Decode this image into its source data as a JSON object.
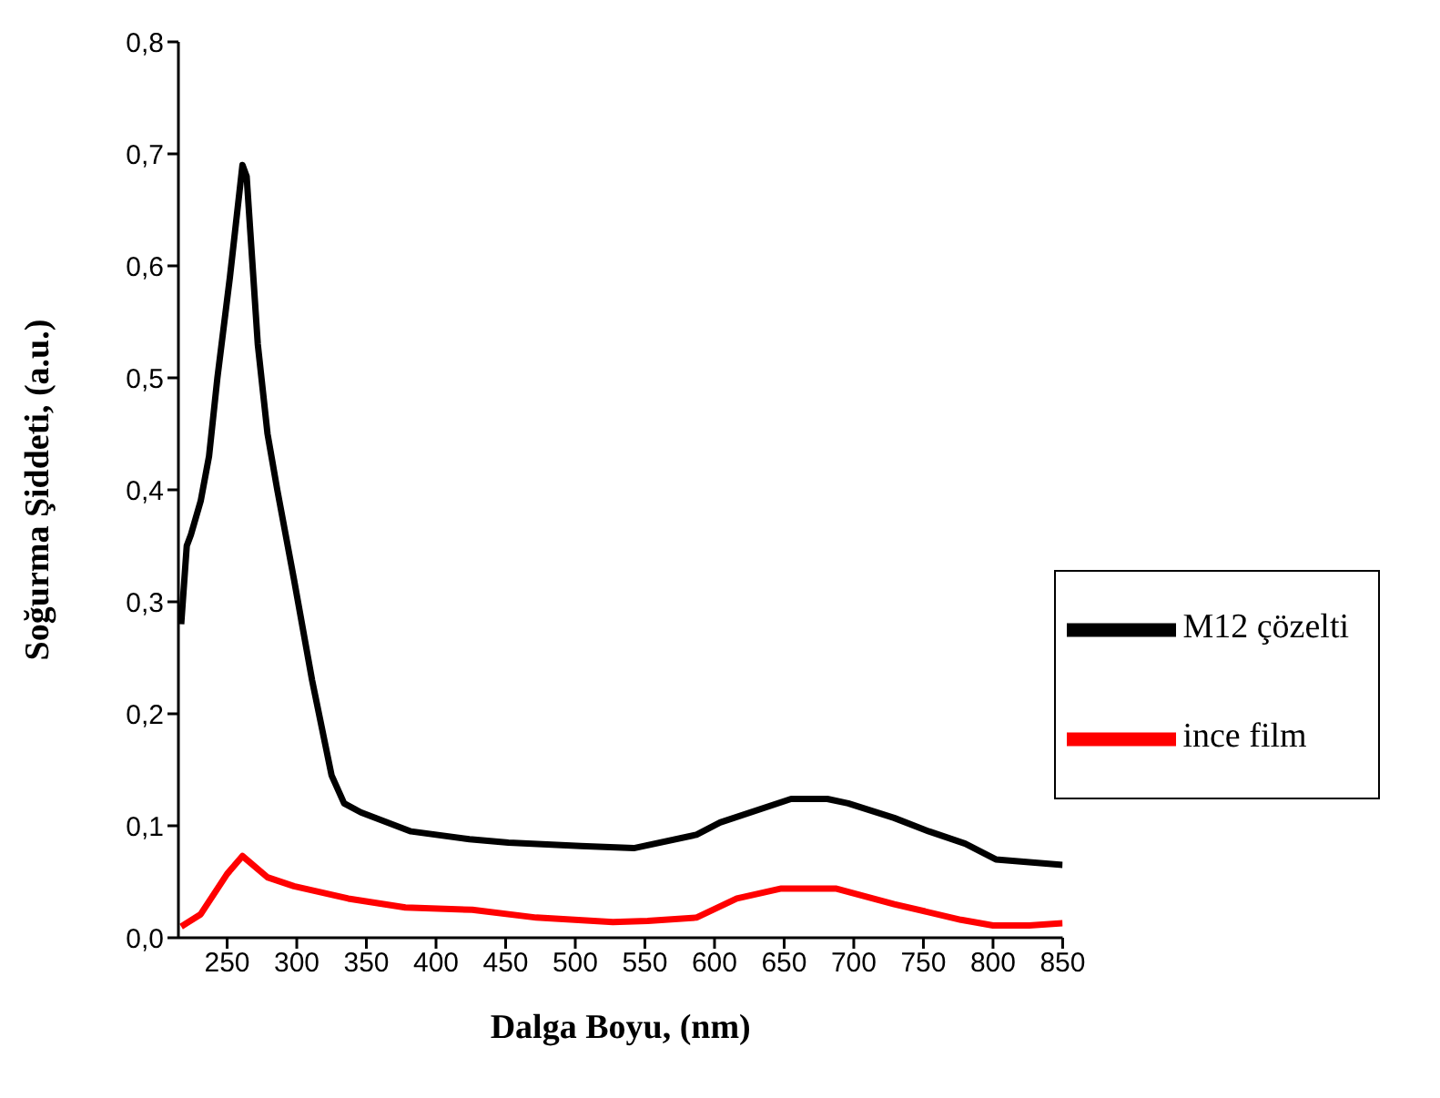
{
  "chart_data": {
    "type": "line",
    "xlabel": "Dalga Boyu, (nm)",
    "ylabel": "Soğurma Şiddeti, (a.u.)",
    "xlim": [
      215,
      850
    ],
    "xticks": [
      250,
      300,
      350,
      400,
      450,
      500,
      550,
      600,
      650,
      700,
      750,
      800,
      850
    ],
    "ylim": [
      0,
      0.8
    ],
    "yticks": [
      {
        "value": 0,
        "label": "0,0"
      },
      {
        "value": 0.1,
        "label": "0,1"
      },
      {
        "value": 0.2,
        "label": "0,2"
      },
      {
        "value": 0.3,
        "label": "0,3"
      },
      {
        "value": 0.4,
        "label": "0,4"
      },
      {
        "value": 0.5,
        "label": "0,5"
      },
      {
        "value": 0.6,
        "label": "0,6"
      },
      {
        "value": 0.7,
        "label": "0,7"
      },
      {
        "value": 0.8,
        "label": "0,8"
      }
    ],
    "grid": false,
    "legend": "right",
    "marker": "none",
    "line_style": "solid",
    "series": [
      {
        "name": "M12 çözelti",
        "color": "#000000",
        "x": [
          217,
          221,
          224,
          231,
          237,
          243,
          252,
          261,
          264,
          272,
          279,
          286,
          298,
          311,
          325,
          334,
          346,
          382,
          424,
          452,
          504,
          542,
          587,
          604,
          655,
          681,
          696,
          729,
          754,
          780,
          802,
          850
        ],
        "values": [
          0.28,
          0.35,
          0.36,
          0.39,
          0.43,
          0.5,
          0.59,
          0.69,
          0.68,
          0.53,
          0.45,
          0.4,
          0.32,
          0.23,
          0.145,
          0.12,
          0.112,
          0.095,
          0.088,
          0.085,
          0.082,
          0.08,
          0.092,
          0.103,
          0.124,
          0.124,
          0.12,
          0.107,
          0.095,
          0.084,
          0.07,
          0.065
        ]
      },
      {
        "name": "ince film",
        "color": "#ff0000",
        "x": [
          217,
          231,
          250,
          261,
          279,
          298,
          337,
          378,
          426,
          472,
          527,
          552,
          587,
          616,
          648,
          687,
          729,
          777,
          800,
          826,
          850
        ],
        "values": [
          0.01,
          0.021,
          0.057,
          0.073,
          0.054,
          0.046,
          0.035,
          0.027,
          0.025,
          0.018,
          0.014,
          0.015,
          0.018,
          0.035,
          0.044,
          0.044,
          0.03,
          0.016,
          0.011,
          0.011,
          0.013
        ]
      }
    ]
  }
}
